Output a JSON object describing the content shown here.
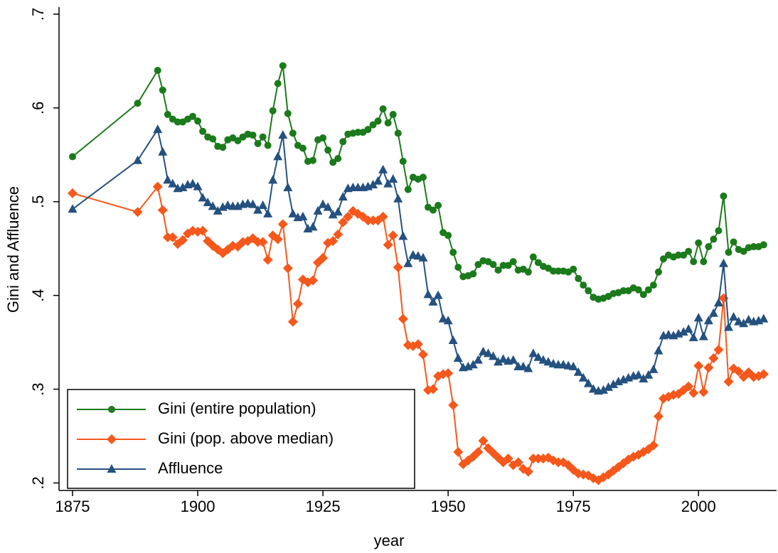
{
  "chart_data": {
    "type": "line",
    "x_label": "year",
    "y_label": "Gini and Affluence",
    "x": [
      1875,
      1888,
      1892,
      1893,
      1894,
      1895,
      1896,
      1897,
      1898,
      1899,
      1900,
      1901,
      1902,
      1903,
      1904,
      1905,
      1906,
      1907,
      1908,
      1909,
      1910,
      1911,
      1912,
      1913,
      1914,
      1915,
      1916,
      1917,
      1918,
      1919,
      1920,
      1921,
      1922,
      1923,
      1924,
      1925,
      1926,
      1927,
      1928,
      1929,
      1930,
      1931,
      1932,
      1933,
      1934,
      1935,
      1936,
      1937,
      1938,
      1939,
      1940,
      1941,
      1942,
      1943,
      1944,
      1945,
      1946,
      1947,
      1948,
      1949,
      1950,
      1951,
      1952,
      1953,
      1954,
      1955,
      1956,
      1957,
      1958,
      1959,
      1960,
      1961,
      1962,
      1963,
      1964,
      1965,
      1966,
      1967,
      1968,
      1969,
      1970,
      1971,
      1972,
      1973,
      1974,
      1975,
      1976,
      1977,
      1978,
      1979,
      1980,
      1981,
      1982,
      1983,
      1984,
      1985,
      1986,
      1987,
      1988,
      1989,
      1990,
      1991,
      1992,
      1993,
      1994,
      1995,
      1996,
      1997,
      1998,
      1999,
      2000,
      2001,
      2002,
      2003,
      2004,
      2005,
      2006,
      2007,
      2008,
      2009,
      2010,
      2011,
      2012,
      2013
    ],
    "series": [
      {
        "name": "Gini (entire population)",
        "color": "#1b7a1b",
        "marker": "circle",
        "values": [
          0.548,
          0.605,
          0.64,
          0.619,
          0.593,
          0.588,
          0.585,
          0.585,
          0.588,
          0.591,
          0.586,
          0.575,
          0.569,
          0.567,
          0.559,
          0.558,
          0.566,
          0.568,
          0.565,
          0.569,
          0.572,
          0.571,
          0.562,
          0.569,
          0.56,
          0.597,
          0.626,
          0.645,
          0.594,
          0.573,
          0.56,
          0.557,
          0.543,
          0.544,
          0.566,
          0.568,
          0.555,
          0.542,
          0.546,
          0.564,
          0.572,
          0.573,
          0.574,
          0.574,
          0.577,
          0.582,
          0.586,
          0.599,
          0.584,
          0.593,
          0.573,
          0.543,
          0.513,
          0.526,
          0.524,
          0.526,
          0.494,
          0.491,
          0.496,
          0.467,
          0.464,
          0.446,
          0.43,
          0.42,
          0.421,
          0.423,
          0.433,
          0.437,
          0.436,
          0.433,
          0.427,
          0.432,
          0.432,
          0.436,
          0.427,
          0.428,
          0.425,
          0.441,
          0.435,
          0.431,
          0.429,
          0.426,
          0.426,
          0.426,
          0.425,
          0.428,
          0.418,
          0.411,
          0.405,
          0.398,
          0.396,
          0.397,
          0.399,
          0.402,
          0.403,
          0.405,
          0.405,
          0.408,
          0.406,
          0.401,
          0.406,
          0.411,
          0.425,
          0.439,
          0.443,
          0.441,
          0.443,
          0.443,
          0.447,
          0.436,
          0.456,
          0.436,
          0.452,
          0.46,
          0.469,
          0.506,
          0.446,
          0.457,
          0.449,
          0.447,
          0.451,
          0.452,
          0.452,
          0.454
        ]
      },
      {
        "name": "Gini (pop. above median)",
        "color": "#f5581c",
        "marker": "diamond",
        "values": [
          0.509,
          0.489,
          0.516,
          0.491,
          0.462,
          0.462,
          0.455,
          0.459,
          0.466,
          0.469,
          0.468,
          0.469,
          0.458,
          0.453,
          0.449,
          0.445,
          0.449,
          0.453,
          0.452,
          0.457,
          0.458,
          0.461,
          0.457,
          0.457,
          0.438,
          0.464,
          0.46,
          0.476,
          0.429,
          0.372,
          0.391,
          0.417,
          0.414,
          0.416,
          0.435,
          0.44,
          0.456,
          0.458,
          0.465,
          0.478,
          0.484,
          0.49,
          0.487,
          0.484,
          0.48,
          0.48,
          0.48,
          0.484,
          0.454,
          0.464,
          0.43,
          0.375,
          0.347,
          0.346,
          0.348,
          0.337,
          0.299,
          0.3,
          0.314,
          0.316,
          0.317,
          0.283,
          0.233,
          0.22,
          0.224,
          0.228,
          0.233,
          0.245,
          0.237,
          0.232,
          0.227,
          0.222,
          0.226,
          0.219,
          0.222,
          0.215,
          0.212,
          0.226,
          0.226,
          0.226,
          0.227,
          0.224,
          0.222,
          0.222,
          0.219,
          0.214,
          0.21,
          0.209,
          0.208,
          0.205,
          0.203,
          0.206,
          0.209,
          0.213,
          0.217,
          0.221,
          0.225,
          0.228,
          0.23,
          0.233,
          0.236,
          0.24,
          0.271,
          0.29,
          0.292,
          0.294,
          0.295,
          0.299,
          0.303,
          0.296,
          0.325,
          0.297,
          0.323,
          0.333,
          0.342,
          0.397,
          0.308,
          0.322,
          0.319,
          0.313,
          0.318,
          0.313,
          0.314,
          0.316
        ]
      },
      {
        "name": "Affluence",
        "color": "#24517f",
        "marker": "triangle",
        "values": [
          0.492,
          0.544,
          0.577,
          0.553,
          0.523,
          0.519,
          0.514,
          0.515,
          0.518,
          0.519,
          0.516,
          0.504,
          0.499,
          0.495,
          0.49,
          0.494,
          0.496,
          0.495,
          0.495,
          0.497,
          0.498,
          0.497,
          0.491,
          0.496,
          0.487,
          0.523,
          0.548,
          0.571,
          0.515,
          0.487,
          0.483,
          0.484,
          0.471,
          0.473,
          0.49,
          0.497,
          0.494,
          0.486,
          0.489,
          0.505,
          0.514,
          0.515,
          0.515,
          0.515,
          0.516,
          0.518,
          0.522,
          0.534,
          0.519,
          0.524,
          0.503,
          0.463,
          0.434,
          0.443,
          0.442,
          0.44,
          0.401,
          0.393,
          0.4,
          0.375,
          0.373,
          0.352,
          0.333,
          0.323,
          0.324,
          0.326,
          0.331,
          0.34,
          0.338,
          0.335,
          0.329,
          0.332,
          0.33,
          0.331,
          0.324,
          0.324,
          0.322,
          0.338,
          0.334,
          0.331,
          0.329,
          0.327,
          0.326,
          0.326,
          0.325,
          0.324,
          0.318,
          0.312,
          0.306,
          0.3,
          0.298,
          0.299,
          0.302,
          0.305,
          0.308,
          0.31,
          0.312,
          0.314,
          0.315,
          0.311,
          0.315,
          0.321,
          0.341,
          0.357,
          0.358,
          0.357,
          0.359,
          0.361,
          0.364,
          0.355,
          0.376,
          0.356,
          0.373,
          0.381,
          0.392,
          0.434,
          0.366,
          0.377,
          0.372,
          0.37,
          0.374,
          0.372,
          0.373,
          0.375
        ]
      }
    ],
    "xlim": [
      1872.3,
      2015.3
    ],
    "xticks": [
      1875,
      1900,
      1925,
      1950,
      1975,
      2000
    ],
    "ylim": [
      0.192,
      0.706
    ],
    "yticks": [
      {
        "value": 0.2,
        "label": ".2"
      },
      {
        "value": 0.3,
        "label": ".3"
      },
      {
        "value": 0.4,
        "label": ".4"
      },
      {
        "value": 0.5,
        "label": ".5"
      },
      {
        "value": 0.6,
        "label": ".6"
      },
      {
        "value": 0.7,
        "label": ".7"
      }
    ],
    "grid": false,
    "legend": "lower left"
  }
}
